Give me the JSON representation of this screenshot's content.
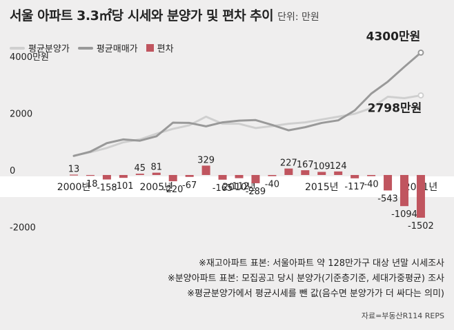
{
  "header": {
    "title": "서울 아파트 3.3㎡당 시세와 분양가 및 편차 추이",
    "unit": "단위: 만원"
  },
  "legend": [
    {
      "label": "평균분양가",
      "color": "#cfcfcf",
      "kind": "line"
    },
    {
      "label": "평균매매가",
      "color": "#999999",
      "kind": "line"
    },
    {
      "label": "편차",
      "color": "#c0555f",
      "kind": "box"
    }
  ],
  "notes": [
    "※재고아파트 표본: 서울아파트 약 128만가구 대상 년말 시세조사",
    "※분양아파트 표본: 모집공고 당시 분양가(기준층기준, 세대가중평균) 조사",
    "※평균분양가에서 평균시세를 뺀 값(음수면 분양가가 더 싸다는 의미)"
  ],
  "source": "자료=부동산R114 REPS",
  "chart_data": {
    "type": "bar",
    "title": "서울 아파트 3.3㎡당 시세와 분양가 및 편차 추이",
    "unit": "만원",
    "y_ticks": [
      "4000만원",
      "2000",
      "0",
      "-2000"
    ],
    "ylim": [
      -2000,
      4000
    ],
    "x_tick_labels": [
      "2000년",
      "2005년",
      "2010년",
      "2015년",
      "2021년"
    ],
    "years": [
      2000,
      2001,
      2002,
      2003,
      2004,
      2005,
      2006,
      2007,
      2008,
      2009,
      2010,
      2011,
      2012,
      2013,
      2014,
      2015,
      2016,
      2017,
      2018,
      2019,
      2020,
      2021
    ],
    "colors": {
      "bar": "#c0555f",
      "presale": "#cfcfcf",
      "market": "#999999"
    },
    "series": [
      {
        "name": "편차",
        "type": "bar",
        "values": [
          13,
          -18,
          -158,
          -101,
          45,
          81,
          -220,
          -67,
          329,
          -165,
          -112,
          -289,
          -40,
          227,
          167,
          109,
          124,
          -117,
          -40,
          -543,
          -1094,
          -1502
        ],
        "labels": [
          "13",
          "-18",
          "-158",
          "-101",
          "45",
          "81",
          "-220",
          "-67",
          "329",
          "-165",
          "-112",
          "-289",
          "-40",
          "227",
          "167",
          "109",
          "124",
          "-117",
          "-40",
          "-543",
          "-1094",
          "-1502"
        ]
      },
      {
        "name": "평균분양가",
        "type": "line",
        "values": [
          680,
          800,
          950,
          1150,
          1250,
          1450,
          1620,
          1750,
          2050,
          1800,
          1800,
          1650,
          1720,
          1800,
          1850,
          1950,
          2050,
          2150,
          2350,
          2750,
          2700,
          2798
        ]
      },
      {
        "name": "평균매매가",
        "type": "line",
        "values": [
          670,
          820,
          1120,
          1250,
          1205,
          1360,
          1840,
          1830,
          1710,
          1850,
          1910,
          1930,
          1760,
          1570,
          1680,
          1830,
          1920,
          2270,
          2860,
          3280,
          3800,
          4300
        ]
      }
    ],
    "end_labels": {
      "market": "4300만원",
      "presale": "2798만원"
    }
  }
}
